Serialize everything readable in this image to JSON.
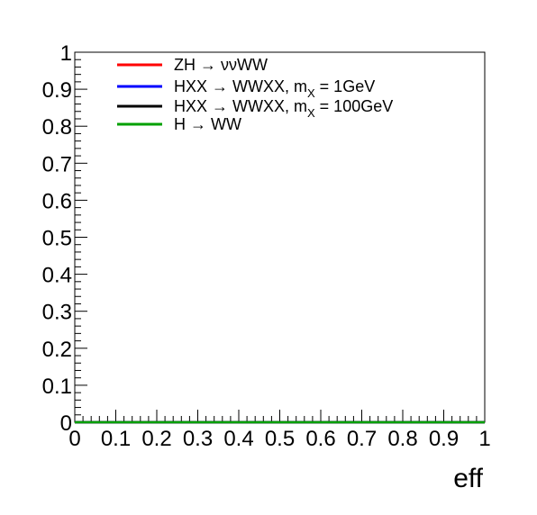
{
  "chart_data": {
    "type": "line",
    "xlabel": "eff",
    "ylabel": "",
    "xlim": [
      0,
      1
    ],
    "ylim": [
      0,
      1
    ],
    "x_ticks": [
      "0",
      "0.1",
      "0.2",
      "0.3",
      "0.4",
      "0.5",
      "0.6",
      "0.7",
      "0.8",
      "0.9",
      "1"
    ],
    "y_ticks": [
      "0",
      "0.1",
      "0.2",
      "0.3",
      "0.4",
      "0.5",
      "0.6",
      "0.7",
      "0.8",
      "0.9",
      "1"
    ],
    "grid": false,
    "legend_position": "top-left",
    "series": [
      {
        "name": "ZH → ννWW",
        "color": "#ff0000",
        "x": [
          0,
          1
        ],
        "y": [
          0,
          0
        ]
      },
      {
        "name": "HXX → WWXX, m",
        "name_sub": "X",
        "name_suffix": " = 1GeV",
        "color": "#0000ff",
        "x": [
          0,
          1
        ],
        "y": [
          0,
          0
        ]
      },
      {
        "name": "HXX → WWXX, m",
        "name_sub": "X",
        "name_suffix": " = 100GeV",
        "color": "#000000",
        "x": [
          0,
          1
        ],
        "y": [
          0,
          0
        ]
      },
      {
        "name": "H → WW",
        "color": "#00a000",
        "x": [
          0,
          1
        ],
        "y": [
          0,
          0
        ]
      }
    ]
  }
}
